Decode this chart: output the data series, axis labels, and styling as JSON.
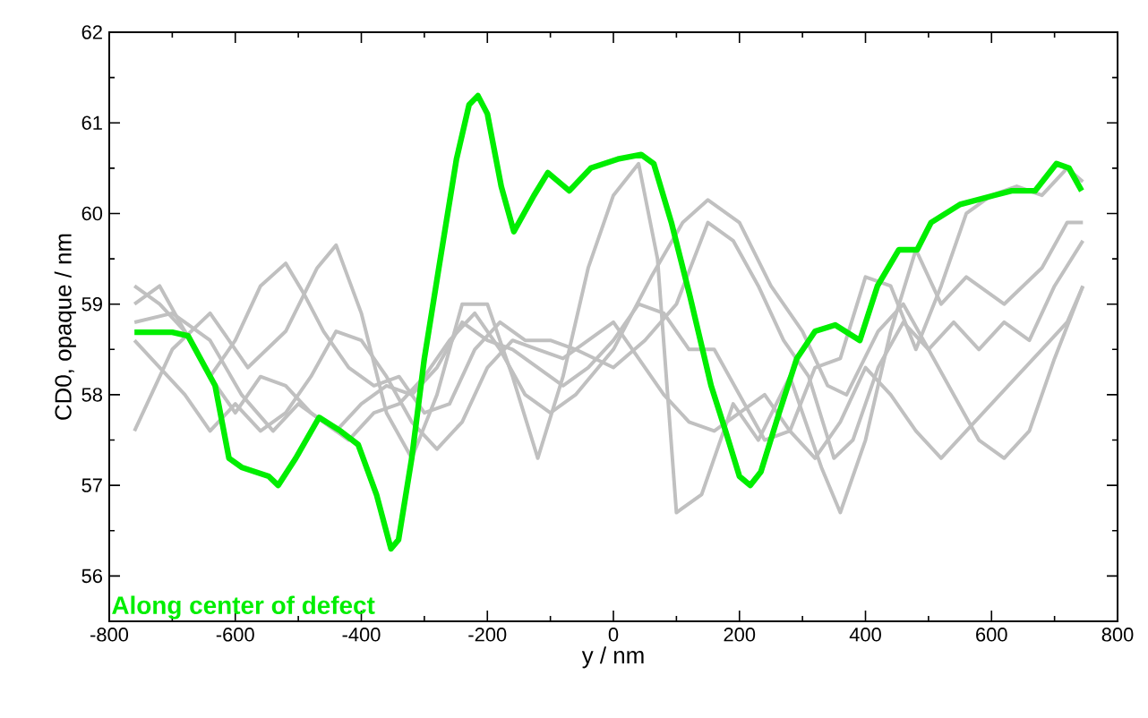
{
  "chart_data": {
    "type": "line",
    "xlabel": "y / nm",
    "ylabel": "CD0, opaque / nm",
    "xlim": [
      -800,
      800
    ],
    "xticks": [
      -800,
      -600,
      -400,
      -200,
      0,
      200,
      400,
      600,
      800
    ],
    "ylim": [
      55.5,
      62
    ],
    "yticks": [
      56,
      57,
      58,
      59,
      60,
      61,
      62
    ],
    "legend": false,
    "grid": false,
    "series": [
      {
        "color": "#c0c0c0",
        "x": [
          -760,
          -700,
          -640,
          -580,
          -520,
          -470,
          -440,
          -400,
          -360,
          -320,
          -280,
          -240,
          -200,
          -160,
          -120,
          -80,
          -40,
          0,
          40,
          70,
          100,
          140,
          190,
          230,
          280,
          330,
          360,
          400,
          440,
          480,
          520,
          560,
          620,
          680,
          720,
          745
        ],
        "values": [
          57.6,
          58.5,
          58.9,
          58.3,
          58.7,
          59.4,
          59.65,
          58.9,
          57.8,
          57.3,
          58.0,
          59.0,
          59.0,
          58.2,
          57.3,
          58.2,
          59.4,
          60.2,
          60.55,
          59.5,
          56.7,
          56.9,
          57.9,
          57.5,
          58.2,
          57.2,
          56.7,
          57.5,
          58.7,
          59.6,
          59.0,
          59.3,
          59.0,
          59.4,
          59.9,
          59.9
        ]
      },
      {
        "color": "#c0c0c0",
        "x": [
          -760,
          -720,
          -680,
          -640,
          -600,
          -560,
          -520,
          -490,
          -460,
          -420,
          -380,
          -340,
          -300,
          -260,
          -220,
          -180,
          -140,
          -100,
          -60,
          0,
          50,
          100,
          150,
          190,
          230,
          270,
          310,
          350,
          380,
          420,
          460,
          500,
          540,
          580,
          620,
          660,
          700,
          745
        ],
        "values": [
          59.0,
          59.2,
          58.7,
          58.2,
          58.6,
          59.2,
          59.45,
          59.1,
          58.7,
          58.3,
          58.1,
          58.2,
          57.8,
          57.9,
          58.5,
          58.8,
          58.6,
          58.6,
          58.5,
          58.3,
          58.6,
          59.0,
          59.9,
          59.7,
          59.2,
          58.6,
          58.2,
          57.3,
          57.5,
          58.3,
          58.8,
          58.5,
          58.0,
          57.5,
          57.3,
          57.6,
          58.4,
          59.2
        ]
      },
      {
        "color": "#c0c0c0",
        "x": [
          -760,
          -700,
          -640,
          -590,
          -540,
          -500,
          -460,
          -420,
          -380,
          -340,
          -300,
          -260,
          -220,
          -180,
          -140,
          -100,
          -60,
          0,
          60,
          110,
          150,
          200,
          250,
          300,
          340,
          370,
          420,
          460,
          500,
          540,
          580,
          620,
          660,
          700,
          745
        ],
        "values": [
          58.8,
          58.9,
          58.6,
          58.0,
          57.6,
          57.9,
          57.7,
          57.5,
          57.8,
          57.9,
          58.2,
          58.6,
          58.9,
          58.5,
          58.0,
          57.8,
          58.0,
          58.5,
          59.3,
          59.9,
          60.15,
          59.9,
          59.2,
          58.7,
          58.1,
          58.0,
          58.7,
          59.0,
          58.5,
          58.8,
          58.5,
          58.8,
          58.6,
          59.2,
          59.7
        ]
      },
      {
        "color": "#c0c0c0",
        "x": [
          -760,
          -720,
          -680,
          -640,
          -600,
          -560,
          -520,
          -480,
          -440,
          -400,
          -360,
          -320,
          -280,
          -240,
          -200,
          -160,
          -120,
          -80,
          -40,
          0,
          40,
          80,
          120,
          160,
          200,
          240,
          280,
          320,
          360,
          400,
          440,
          480,
          520,
          560,
          600,
          640,
          680,
          720,
          745
        ],
        "values": [
          59.2,
          59.0,
          58.7,
          58.2,
          57.8,
          58.2,
          58.1,
          57.8,
          57.6,
          57.9,
          58.1,
          58.0,
          58.3,
          58.8,
          58.6,
          58.5,
          58.3,
          58.1,
          58.3,
          58.6,
          59.0,
          58.9,
          58.5,
          58.5,
          58.0,
          57.5,
          57.6,
          58.3,
          58.4,
          59.3,
          59.2,
          58.5,
          59.2,
          60.0,
          60.2,
          60.3,
          60.2,
          60.5,
          60.35
        ]
      },
      {
        "color": "#c0c0c0",
        "x": [
          -760,
          -720,
          -680,
          -640,
          -600,
          -560,
          -520,
          -480,
          -440,
          -400,
          -360,
          -320,
          -280,
          -240,
          -200,
          -160,
          -120,
          -80,
          -40,
          0,
          40,
          80,
          120,
          160,
          200,
          240,
          280,
          320,
          360,
          400,
          440,
          480,
          520,
          560,
          600,
          640,
          680,
          720,
          745
        ],
        "values": [
          58.6,
          58.3,
          58.0,
          57.6,
          57.9,
          57.6,
          57.8,
          58.2,
          58.7,
          58.6,
          58.2,
          57.7,
          57.4,
          57.7,
          58.3,
          58.6,
          58.5,
          58.4,
          58.6,
          58.8,
          58.4,
          58.0,
          57.7,
          57.6,
          57.8,
          58.0,
          57.6,
          57.3,
          57.7,
          58.3,
          58.0,
          57.6,
          57.3,
          57.6,
          57.9,
          58.2,
          58.5,
          58.8,
          59.2
        ]
      },
      {
        "name": "Along center of defect",
        "color": "#00ee00",
        "x": [
          -760,
          -700,
          -675,
          -632,
          -610,
          -590,
          -547,
          -532,
          -504,
          -467,
          -433,
          -405,
          -376,
          -353,
          -341,
          -320,
          -300,
          -277,
          -249,
          -229,
          -215,
          -200,
          -178,
          -158,
          -126,
          -104,
          -70,
          -36,
          7,
          44,
          64,
          92,
          121,
          155,
          178,
          200,
          217,
          234,
          263,
          291,
          320,
          352,
          391,
          419,
          453,
          482,
          504,
          550,
          604,
          632,
          669,
          703,
          723,
          743
        ],
        "values": [
          58.69,
          58.69,
          58.65,
          58.1,
          57.3,
          57.2,
          57.1,
          57.0,
          57.3,
          57.75,
          57.6,
          57.45,
          56.9,
          56.3,
          56.4,
          57.3,
          58.4,
          59.4,
          60.6,
          61.2,
          61.3,
          61.1,
          60.3,
          59.8,
          60.2,
          60.45,
          60.25,
          60.5,
          60.6,
          60.65,
          60.55,
          59.9,
          59.1,
          58.1,
          57.6,
          57.1,
          57.0,
          57.15,
          57.8,
          58.4,
          58.7,
          58.77,
          58.6,
          59.2,
          59.6,
          59.6,
          59.9,
          60.1,
          60.2,
          60.25,
          60.25,
          60.55,
          60.5,
          60.25
        ]
      }
    ]
  }
}
